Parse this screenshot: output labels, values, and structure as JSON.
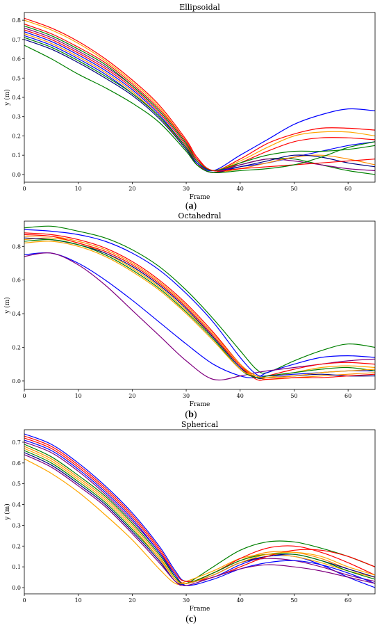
{
  "colors": [
    "#0000ff",
    "#ff0000",
    "#008000",
    "#ff8c00",
    "#800080",
    "#ffa500",
    "#000080"
  ],
  "chart_data": [
    {
      "type": "line",
      "title": "Ellipsoidal",
      "xlabel": "Frame",
      "ylabel": "y (m)",
      "caption_letter": "a",
      "xlim": [
        0,
        65
      ],
      "ylim": [
        -0.04,
        0.84
      ],
      "xticks": [
        0,
        10,
        20,
        30,
        40,
        50,
        60
      ],
      "yticks": [
        0.0,
        0.1,
        0.2,
        0.3,
        0.4,
        0.5,
        0.6,
        0.7,
        0.8
      ],
      "ytick_labels": [
        "0.0",
        "0.1",
        "0.2",
        "0.3",
        "0.4",
        "0.5",
        "0.6",
        "0.7",
        "0.8"
      ],
      "x": [
        0,
        5,
        10,
        15,
        20,
        25,
        30,
        32,
        35,
        40,
        45,
        50,
        55,
        60,
        65
      ],
      "series": [
        {
          "color": "#0000ff",
          "values": [
            0.72,
            0.67,
            0.6,
            0.52,
            0.42,
            0.3,
            0.14,
            0.06,
            0.02,
            0.1,
            0.18,
            0.26,
            0.31,
            0.34,
            0.33
          ]
        },
        {
          "color": "#ff0000",
          "values": [
            0.81,
            0.76,
            0.69,
            0.6,
            0.49,
            0.36,
            0.18,
            0.09,
            0.02,
            0.08,
            0.16,
            0.21,
            0.24,
            0.24,
            0.23
          ]
        },
        {
          "color": "#008000",
          "values": [
            0.67,
            0.6,
            0.52,
            0.45,
            0.37,
            0.27,
            0.12,
            0.05,
            0.01,
            0.05,
            0.08,
            0.08,
            0.05,
            0.02,
            0.0
          ]
        },
        {
          "color": "#ffa500",
          "values": [
            0.8,
            0.75,
            0.68,
            0.59,
            0.48,
            0.35,
            0.17,
            0.08,
            0.02,
            0.07,
            0.14,
            0.2,
            0.22,
            0.22,
            0.2
          ]
        },
        {
          "color": "#800080",
          "values": [
            0.76,
            0.71,
            0.64,
            0.56,
            0.46,
            0.33,
            0.16,
            0.07,
            0.02,
            0.05,
            0.08,
            0.07,
            0.05,
            0.03,
            0.02
          ]
        },
        {
          "color": "#ff0000",
          "values": [
            0.75,
            0.7,
            0.63,
            0.55,
            0.45,
            0.32,
            0.15,
            0.06,
            0.01,
            0.06,
            0.12,
            0.17,
            0.19,
            0.19,
            0.18
          ]
        },
        {
          "color": "#0000ff",
          "values": [
            0.74,
            0.69,
            0.62,
            0.54,
            0.44,
            0.31,
            0.14,
            0.06,
            0.02,
            0.04,
            0.06,
            0.09,
            0.12,
            0.15,
            0.17
          ]
        },
        {
          "color": "#008000",
          "values": [
            0.77,
            0.72,
            0.65,
            0.57,
            0.46,
            0.33,
            0.16,
            0.07,
            0.02,
            0.06,
            0.1,
            0.12,
            0.12,
            0.13,
            0.15
          ]
        },
        {
          "color": "#ff8c00",
          "values": [
            0.73,
            0.68,
            0.61,
            0.53,
            0.43,
            0.3,
            0.13,
            0.05,
            0.01,
            0.03,
            0.06,
            0.09,
            0.1,
            0.08,
            0.05
          ]
        },
        {
          "color": "#000080",
          "values": [
            0.7,
            0.65,
            0.58,
            0.5,
            0.41,
            0.29,
            0.13,
            0.05,
            0.01,
            0.04,
            0.07,
            0.1,
            0.09,
            0.06,
            0.04
          ]
        },
        {
          "color": "#ff0000",
          "values": [
            0.78,
            0.73,
            0.66,
            0.58,
            0.47,
            0.34,
            0.17,
            0.08,
            0.02,
            0.03,
            0.04,
            0.05,
            0.06,
            0.07,
            0.08
          ]
        },
        {
          "color": "#008000",
          "values": [
            0.71,
            0.66,
            0.59,
            0.51,
            0.42,
            0.3,
            0.14,
            0.05,
            0.01,
            0.02,
            0.03,
            0.05,
            0.09,
            0.14,
            0.17
          ]
        }
      ]
    },
    {
      "type": "line",
      "title": "Octahedral",
      "xlabel": "Frame",
      "ylabel": "y (m)",
      "caption_letter": "b",
      "xlim": [
        0,
        65
      ],
      "ylim": [
        -0.05,
        0.95
      ],
      "xticks": [
        0,
        10,
        20,
        30,
        40,
        50,
        60
      ],
      "yticks": [
        0.0,
        0.2,
        0.4,
        0.6,
        0.8
      ],
      "ytick_labels": [
        "0.0",
        "0.2",
        "0.4",
        "0.6",
        "0.8"
      ],
      "x": [
        0,
        5,
        10,
        15,
        20,
        25,
        30,
        35,
        40,
        43,
        45,
        50,
        55,
        60,
        65
      ],
      "series": [
        {
          "color": "#008000",
          "values": [
            0.91,
            0.92,
            0.89,
            0.85,
            0.78,
            0.68,
            0.54,
            0.37,
            0.18,
            0.07,
            0.05,
            0.12,
            0.18,
            0.22,
            0.2
          ]
        },
        {
          "color": "#0000ff",
          "values": [
            0.75,
            0.76,
            0.7,
            0.6,
            0.48,
            0.35,
            0.22,
            0.1,
            0.03,
            0.02,
            0.05,
            0.1,
            0.14,
            0.15,
            0.14
          ]
        },
        {
          "color": "#800080",
          "values": [
            0.74,
            0.76,
            0.69,
            0.57,
            0.42,
            0.27,
            0.12,
            0.01,
            0.03,
            0.05,
            0.06,
            0.08,
            0.1,
            0.12,
            0.13
          ]
        },
        {
          "color": "#ff0000",
          "values": [
            0.88,
            0.87,
            0.84,
            0.79,
            0.71,
            0.6,
            0.46,
            0.29,
            0.1,
            0.02,
            0.03,
            0.07,
            0.1,
            0.11,
            0.1
          ]
        },
        {
          "color": "#ffa500",
          "values": [
            0.84,
            0.85,
            0.82,
            0.76,
            0.67,
            0.56,
            0.42,
            0.26,
            0.09,
            0.02,
            0.02,
            0.05,
            0.08,
            0.09,
            0.08
          ]
        },
        {
          "color": "#0000ff",
          "values": [
            0.9,
            0.89,
            0.87,
            0.83,
            0.76,
            0.66,
            0.52,
            0.35,
            0.14,
            0.04,
            0.03,
            0.04,
            0.05,
            0.06,
            0.06
          ]
        },
        {
          "color": "#ff8c00",
          "values": [
            0.86,
            0.86,
            0.83,
            0.78,
            0.7,
            0.59,
            0.45,
            0.28,
            0.1,
            0.03,
            0.01,
            0.02,
            0.03,
            0.04,
            0.05
          ]
        },
        {
          "color": "#000080",
          "values": [
            0.85,
            0.84,
            0.81,
            0.76,
            0.68,
            0.57,
            0.43,
            0.26,
            0.08,
            0.02,
            0.02,
            0.03,
            0.04,
            0.03,
            0.03
          ]
        },
        {
          "color": "#ff0000",
          "values": [
            0.87,
            0.86,
            0.82,
            0.77,
            0.69,
            0.58,
            0.44,
            0.27,
            0.09,
            0.01,
            0.01,
            0.02,
            0.02,
            0.03,
            0.04
          ]
        },
        {
          "color": "#008000",
          "values": [
            0.83,
            0.84,
            0.81,
            0.75,
            0.66,
            0.55,
            0.41,
            0.25,
            0.07,
            0.02,
            0.03,
            0.05,
            0.07,
            0.08,
            0.06
          ]
        },
        {
          "color": "#ffa500",
          "values": [
            0.82,
            0.83,
            0.8,
            0.74,
            0.65,
            0.54,
            0.4,
            0.24,
            0.07,
            0.03,
            0.02,
            0.03,
            0.05,
            0.06,
            0.07
          ]
        }
      ]
    },
    {
      "type": "line",
      "title": "Spherical",
      "xlabel": "Frame",
      "ylabel": "y (m)",
      "caption_letter": "c",
      "xlim": [
        0,
        65
      ],
      "ylim": [
        -0.03,
        0.76
      ],
      "xticks": [
        0,
        10,
        20,
        30,
        40,
        50,
        60
      ],
      "yticks": [
        0.0,
        0.1,
        0.2,
        0.3,
        0.4,
        0.5,
        0.6,
        0.7
      ],
      "ytick_labels": [
        "0.0",
        "0.1",
        "0.2",
        "0.3",
        "0.4",
        "0.5",
        "0.6",
        "0.7"
      ],
      "x": [
        0,
        5,
        10,
        15,
        20,
        25,
        28,
        30,
        35,
        40,
        45,
        50,
        55,
        60,
        65
      ],
      "series": [
        {
          "color": "#0000ff",
          "values": [
            0.74,
            0.69,
            0.6,
            0.49,
            0.36,
            0.2,
            0.08,
            0.03,
            0.05,
            0.11,
            0.15,
            0.15,
            0.11,
            0.05,
            0.0
          ]
        },
        {
          "color": "#008000",
          "values": [
            0.66,
            0.6,
            0.51,
            0.41,
            0.28,
            0.14,
            0.04,
            0.02,
            0.1,
            0.18,
            0.22,
            0.22,
            0.19,
            0.15,
            0.1
          ]
        },
        {
          "color": "#ffa500",
          "values": [
            0.62,
            0.55,
            0.46,
            0.35,
            0.23,
            0.09,
            0.02,
            0.03,
            0.08,
            0.14,
            0.16,
            0.15,
            0.12,
            0.08,
            0.05
          ]
        },
        {
          "color": "#ff0000",
          "values": [
            0.72,
            0.67,
            0.58,
            0.47,
            0.34,
            0.18,
            0.06,
            0.02,
            0.07,
            0.14,
            0.19,
            0.2,
            0.17,
            0.12,
            0.06
          ]
        },
        {
          "color": "#800080",
          "values": [
            0.7,
            0.65,
            0.56,
            0.45,
            0.32,
            0.17,
            0.05,
            0.02,
            0.06,
            0.12,
            0.14,
            0.13,
            0.1,
            0.06,
            0.03
          ]
        },
        {
          "color": "#ff8c00",
          "values": [
            0.68,
            0.62,
            0.53,
            0.43,
            0.3,
            0.15,
            0.04,
            0.02,
            0.07,
            0.13,
            0.17,
            0.17,
            0.14,
            0.09,
            0.05
          ]
        },
        {
          "color": "#000080",
          "values": [
            0.65,
            0.59,
            0.5,
            0.4,
            0.27,
            0.13,
            0.03,
            0.02,
            0.06,
            0.12,
            0.15,
            0.16,
            0.13,
            0.09,
            0.05
          ]
        },
        {
          "color": "#ff0000",
          "values": [
            0.73,
            0.68,
            0.59,
            0.48,
            0.35,
            0.19,
            0.07,
            0.03,
            0.05,
            0.1,
            0.15,
            0.18,
            0.18,
            0.15,
            0.1
          ]
        },
        {
          "color": "#0000ff",
          "values": [
            0.71,
            0.66,
            0.57,
            0.46,
            0.33,
            0.17,
            0.06,
            0.01,
            0.04,
            0.09,
            0.12,
            0.13,
            0.11,
            0.07,
            0.02
          ]
        },
        {
          "color": "#008000",
          "values": [
            0.69,
            0.63,
            0.54,
            0.44,
            0.31,
            0.16,
            0.05,
            0.02,
            0.07,
            0.13,
            0.16,
            0.16,
            0.13,
            0.08,
            0.04
          ]
        },
        {
          "color": "#ffa500",
          "values": [
            0.67,
            0.61,
            0.52,
            0.42,
            0.29,
            0.14,
            0.04,
            0.02,
            0.06,
            0.12,
            0.16,
            0.17,
            0.15,
            0.1,
            0.06
          ]
        },
        {
          "color": "#800080",
          "values": [
            0.64,
            0.58,
            0.49,
            0.39,
            0.26,
            0.12,
            0.03,
            0.01,
            0.05,
            0.09,
            0.11,
            0.1,
            0.08,
            0.05,
            0.02
          ]
        }
      ]
    }
  ]
}
